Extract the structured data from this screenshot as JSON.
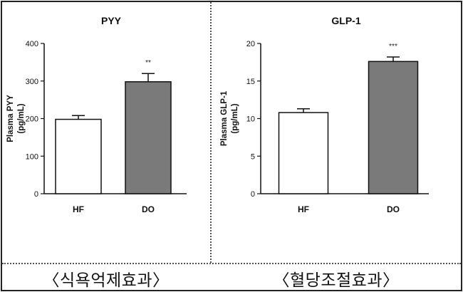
{
  "chart_data": [
    {
      "type": "bar",
      "title": "PYY",
      "ylabel_line1": "Plasma PYY",
      "ylabel_line2": "(pg/mL)",
      "xlabel": "",
      "categories": [
        "HF",
        "DO"
      ],
      "values": [
        198,
        298
      ],
      "errors": [
        10,
        22
      ],
      "significance": [
        "",
        "**"
      ],
      "ylim": [
        0,
        400
      ],
      "yticks": [
        0,
        100,
        200,
        300,
        400
      ],
      "bar_colors": [
        "#ffffff",
        "#7a7a7a"
      ],
      "grid": false
    },
    {
      "type": "bar",
      "title": "GLP-1",
      "ylabel_line1": "Plasma GLP-1",
      "ylabel_line2": "(pg/mL)",
      "xlabel": "",
      "categories": [
        "HF",
        "DO"
      ],
      "values": [
        10.8,
        17.6
      ],
      "errors": [
        0.5,
        0.6
      ],
      "significance": [
        "",
        "***"
      ],
      "ylim": [
        0,
        20
      ],
      "yticks": [
        0,
        5,
        10,
        15,
        20
      ],
      "bar_colors": [
        "#ffffff",
        "#7a7a7a"
      ],
      "grid": false
    }
  ],
  "captions": {
    "left": "〈식욕억제효과〉",
    "right": "〈혈당조절효과〉"
  }
}
